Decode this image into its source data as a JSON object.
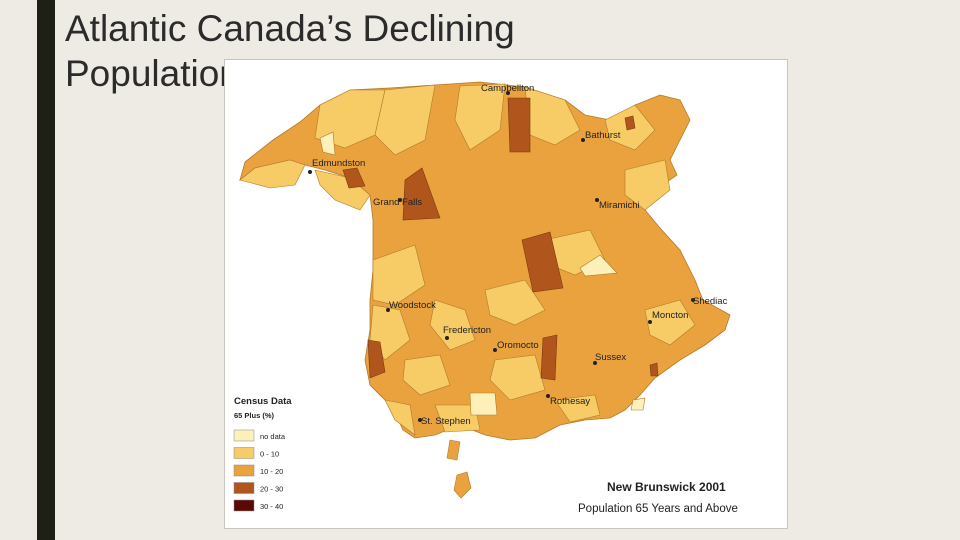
{
  "slide": {
    "title": "Atlantic Canada’s Declining Population"
  },
  "map": {
    "title": "New Brunswick 2001",
    "subtitle": "Population 65 Years and Above",
    "cities": [
      {
        "name": "Campbellton"
      },
      {
        "name": "Bathurst"
      },
      {
        "name": "Edmundston"
      },
      {
        "name": "Grand Falls"
      },
      {
        "name": "Miramichi"
      },
      {
        "name": "Shediac"
      },
      {
        "name": "Moncton"
      },
      {
        "name": "Woodstock"
      },
      {
        "name": "Fredericton"
      },
      {
        "name": "Oromocto"
      },
      {
        "name": "Sussex"
      },
      {
        "name": "Rothesay"
      },
      {
        "name": "St. Stephen"
      }
    ]
  },
  "legend": {
    "title": "Census Data",
    "subtitle": "65 Plus (%)",
    "items": [
      {
        "label": "no data",
        "color": "#fdf0b8"
      },
      {
        "label": "0 - 10",
        "color": "#f7cb66"
      },
      {
        "label": "10 - 20",
        "color": "#e9a23e"
      },
      {
        "label": "20 - 30",
        "color": "#b0561c"
      },
      {
        "label": "30 - 40",
        "color": "#5a0a06"
      }
    ]
  }
}
